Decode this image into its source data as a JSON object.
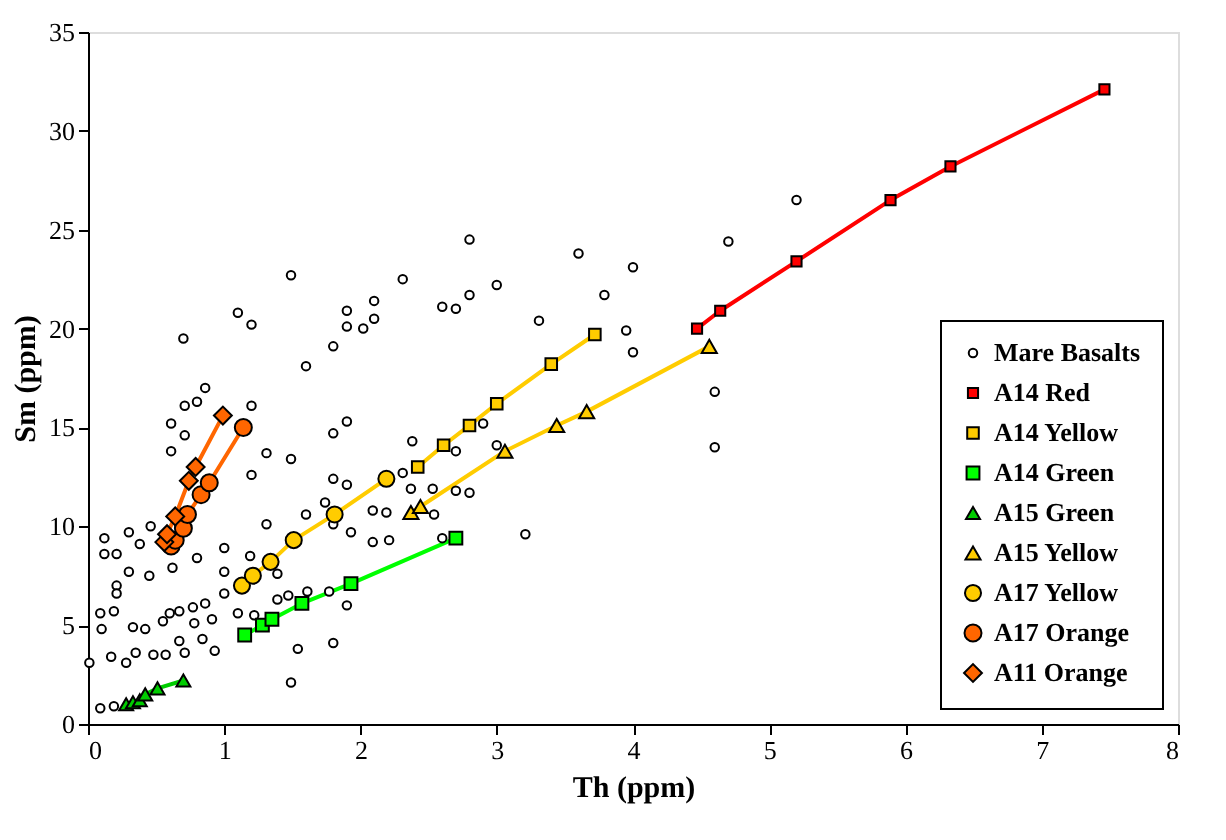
{
  "chart_data": {
    "type": "scatter",
    "xlabel": "Th (ppm)",
    "ylabel": "Sm (ppm)",
    "xlim": [
      0,
      8
    ],
    "ylim": [
      0,
      35
    ],
    "xticks": [
      0,
      1,
      2,
      3,
      4,
      5,
      6,
      7,
      8
    ],
    "yticks": [
      0,
      5,
      10,
      15,
      20,
      25,
      30,
      35
    ],
    "grid": false,
    "legend": "bottom right",
    "series": [
      {
        "name": "Mare Basalts",
        "type": "scatter",
        "marker": "circle",
        "color": "#000000",
        "x": [
          1.49,
          2.31,
          2.8,
          1.1,
          1.2,
          0.7,
          1.9,
          1.9,
          2.02,
          2.1,
          2.1,
          2.6,
          2.7,
          1.8,
          1.6,
          0.86,
          0.71,
          0.8,
          1.2,
          0.61,
          0.71,
          1.8,
          1.9,
          1.2,
          1.31,
          1.49,
          1.8,
          0.61,
          0.46,
          0.8,
          1.0,
          1.0,
          0.62,
          0.45,
          0.3,
          0.12,
          0.12,
          0.21,
          0.3,
          0.38,
          0.21,
          0.21,
          0.09,
          0.1,
          0.19,
          0.33,
          0.42,
          0.55,
          0.6,
          0.67,
          0.77,
          0.86,
          0.91,
          0.78,
          0.84,
          0.93,
          0.67,
          0.71,
          0.57,
          0.48,
          0.35,
          0.28,
          0.17,
          0.01,
          0.09,
          0.19,
          1.0,
          1.1,
          1.22,
          1.39,
          1.47,
          1.61,
          1.77,
          1.54,
          1.49,
          1.8,
          1.9,
          1.31,
          1.19,
          1.39,
          1.6,
          1.74,
          1.9,
          1.93,
          1.8,
          2.09,
          2.19,
          2.31,
          2.37,
          2.09,
          2.38,
          2.53,
          2.8,
          2.8,
          3.0,
          3.6,
          4.0,
          3.79,
          4.7,
          5.2,
          3.31,
          3.95,
          4.0,
          4.6,
          4.6,
          3.21,
          2.7,
          2.9,
          3.0,
          2.7,
          2.6,
          2.54,
          2.21
        ],
        "values": [
          22.7,
          22.5,
          24.5,
          20.8,
          20.2,
          19.5,
          20.9,
          20.1,
          20.0,
          21.4,
          20.5,
          21.1,
          21.0,
          19.1,
          18.1,
          17.0,
          16.1,
          16.3,
          16.1,
          15.2,
          14.6,
          14.7,
          15.3,
          12.6,
          13.7,
          13.4,
          12.4,
          13.8,
          10.0,
          8.4,
          8.9,
          7.7,
          7.9,
          7.5,
          7.7,
          8.6,
          9.4,
          8.6,
          9.7,
          9.1,
          7.0,
          6.6,
          5.6,
          4.8,
          5.7,
          4.9,
          4.8,
          5.2,
          5.6,
          5.7,
          5.9,
          6.1,
          5.3,
          5.1,
          4.3,
          3.7,
          4.2,
          3.6,
          3.5,
          3.5,
          3.6,
          3.1,
          3.4,
          3.1,
          0.8,
          0.9,
          6.6,
          5.6,
          5.5,
          6.3,
          6.5,
          6.7,
          6.7,
          3.8,
          2.1,
          4.1,
          6.0,
          10.1,
          8.5,
          7.6,
          10.6,
          11.2,
          12.1,
          9.7,
          10.1,
          10.8,
          10.7,
          12.7,
          11.9,
          9.2,
          14.3,
          11.9,
          11.7,
          21.7,
          22.2,
          23.8,
          23.1,
          21.7,
          24.4,
          26.5,
          20.4,
          19.9,
          18.8,
          16.8,
          14.0,
          9.6,
          11.8,
          15.2,
          14.1,
          13.8,
          9.4,
          10.6,
          9.3
        ]
      },
      {
        "name": "A14 Red",
        "type": "line",
        "marker": "square",
        "color": "#ff0000",
        "x": [
          4.47,
          4.64,
          5.2,
          5.89,
          6.33,
          7.46
        ],
        "values": [
          20.0,
          20.9,
          23.4,
          26.5,
          28.2,
          32.1
        ]
      },
      {
        "name": "A14 Yellow",
        "type": "line",
        "marker": "square",
        "color": "#ffcc00",
        "x": [
          2.42,
          2.61,
          2.8,
          3.0,
          3.4,
          3.72
        ],
        "values": [
          13.0,
          14.1,
          15.1,
          16.2,
          18.2,
          19.7
        ]
      },
      {
        "name": "A14 Green",
        "type": "line",
        "marker": "square",
        "color": "#00ff00",
        "x": [
          1.15,
          1.28,
          1.35,
          1.57,
          1.93,
          2.7
        ],
        "values": [
          4.5,
          5.0,
          5.3,
          6.1,
          7.1,
          9.4
        ]
      },
      {
        "name": "A15 Green",
        "type": "line",
        "marker": "triangle",
        "color": "#00cc00",
        "x": [
          0.28,
          0.33,
          0.38,
          0.42,
          0.51,
          0.7
        ],
        "values": [
          1.0,
          1.1,
          1.2,
          1.5,
          1.8,
          2.2
        ]
      },
      {
        "name": "A15 Yellow",
        "type": "line",
        "marker": "triangle",
        "color": "#ffcc00",
        "x": [
          2.37,
          2.44,
          3.06,
          3.44,
          3.66,
          4.56
        ],
        "values": [
          10.7,
          11.0,
          13.8,
          15.1,
          15.8,
          19.1
        ]
      },
      {
        "name": "A17 Yellow",
        "type": "line",
        "marker": "circle",
        "color": "#ffcc00",
        "x": [
          1.13,
          1.21,
          1.34,
          1.51,
          1.81,
          2.19
        ],
        "values": [
          7.0,
          7.5,
          8.2,
          9.3,
          10.6,
          12.4
        ]
      },
      {
        "name": "A17 Orange",
        "type": "line",
        "marker": "circle",
        "color": "#ff6600",
        "x": [
          0.61,
          0.64,
          0.7,
          0.73,
          0.83,
          0.89,
          1.14
        ],
        "values": [
          9.0,
          9.3,
          9.9,
          10.6,
          11.6,
          12.2,
          15.0
        ]
      },
      {
        "name": "A11 Orange",
        "type": "line",
        "marker": "diamond",
        "color": "#ff6600",
        "x": [
          0.56,
          0.58,
          0.64,
          0.74,
          0.79,
          0.99
        ],
        "values": [
          9.2,
          9.6,
          10.5,
          12.3,
          13.0,
          15.6
        ]
      }
    ]
  }
}
